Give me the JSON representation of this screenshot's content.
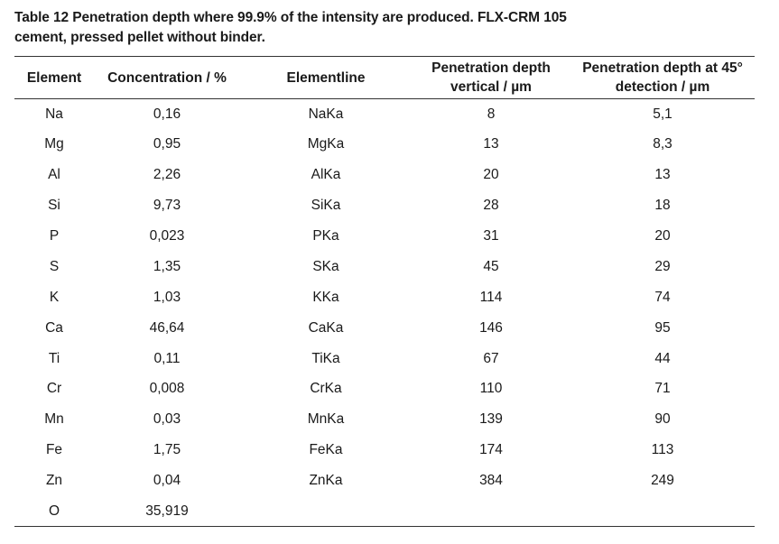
{
  "caption": {
    "line1": "Table 12 Penetration depth where 99.9% of the intensity are produced. FLX-CRM 105",
    "line2": "cement, pressed pellet without binder."
  },
  "table": {
    "headers": [
      {
        "line1": "Element",
        "line2": ""
      },
      {
        "line1": "Concentration / %",
        "line2": ""
      },
      {
        "line1": "Elementline",
        "line2": ""
      },
      {
        "line1": "Penetration depth",
        "line2": "vertical / µm"
      },
      {
        "line1": "Penetration depth at 45°",
        "line2": "detection / µm"
      }
    ],
    "rows": [
      [
        "Na",
        "0,16",
        "NaKa",
        "8",
        "5,1"
      ],
      [
        "Mg",
        "0,95",
        "MgKa",
        "13",
        "8,3"
      ],
      [
        "Al",
        "2,26",
        "AlKa",
        "20",
        "13"
      ],
      [
        "Si",
        "9,73",
        "SiKa",
        "28",
        "18"
      ],
      [
        "P",
        "0,023",
        "PKa",
        "31",
        "20"
      ],
      [
        "S",
        "1,35",
        "SKa",
        "45",
        "29"
      ],
      [
        "K",
        "1,03",
        "KKa",
        "114",
        "74"
      ],
      [
        "Ca",
        "46,64",
        "CaKa",
        "146",
        "95"
      ],
      [
        "Ti",
        "0,11",
        "TiKa",
        "67",
        "44"
      ],
      [
        "Cr",
        "0,008",
        "CrKa",
        "110",
        "71"
      ],
      [
        "Mn",
        "0,03",
        "MnKa",
        "139",
        "90"
      ],
      [
        "Fe",
        "1,75",
        "FeKa",
        "174",
        "113"
      ],
      [
        "Zn",
        "0,04",
        "ZnKa",
        "384",
        "249"
      ],
      [
        "O",
        "35,919",
        "",
        "",
        ""
      ]
    ]
  }
}
